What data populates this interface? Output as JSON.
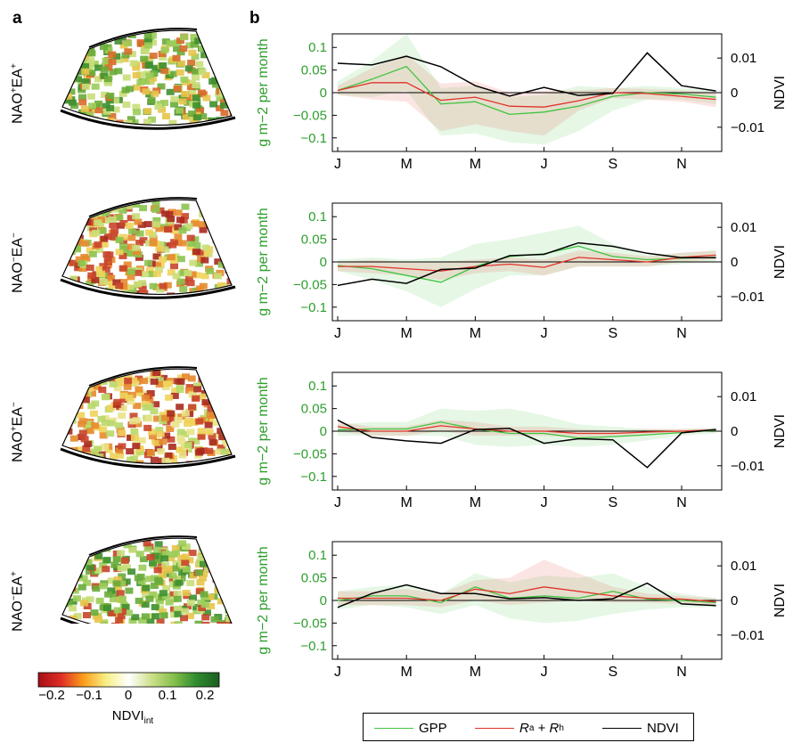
{
  "panel_labels": {
    "a": "a",
    "b": "b"
  },
  "rows": [
    {
      "base": "NAO",
      "sup1": "+",
      "mid": "EA",
      "sup2": "+"
    },
    {
      "base": "NAO",
      "sup1": "−",
      "mid": "EA",
      "sup2": "−"
    },
    {
      "base": "NAO",
      "sup1": "+",
      "mid": "EA",
      "sup2": "−"
    },
    {
      "base": "NAO",
      "sup1": "−",
      "mid": "EA",
      "sup2": "+"
    }
  ],
  "colorbar": {
    "ticks": [
      "−0.2",
      "−0.1",
      "0",
      "0.1",
      "0.2"
    ],
    "label": "NDVI",
    "label_sub": "int",
    "range": [
      -0.27,
      0.27
    ],
    "colors": [
      "#a50f15",
      "#de2d26",
      "#fc9e1c",
      "#f7f085",
      "#ffffff",
      "#cde08a",
      "#84c04a",
      "#2e8b2e",
      "#1b5e20"
    ]
  },
  "legend": {
    "gpp": "GPP",
    "r_a": "R",
    "r_a_sub": "a",
    "plus": " + ",
    "r_h": "R",
    "r_h_sub": "h",
    "ndvi": "NDVI"
  },
  "colors": {
    "gpp": "#3fc43f",
    "resp": "#e0342a",
    "ndvi": "#000000",
    "axis_left": "#2e9e2e"
  },
  "chart_data": [
    {
      "type": "line",
      "row": "NAO+EA+",
      "x_ticks": [
        "J",
        "M",
        "M",
        "J",
        "S",
        "N"
      ],
      "months": [
        1,
        2,
        3,
        4,
        5,
        6,
        7,
        8,
        9,
        10,
        11,
        12
      ],
      "ylabel": "g m−2 per month",
      "ylabel_right": "NDVI",
      "ylim": [
        -0.13,
        0.13
      ],
      "yticks": [
        "0.1",
        "0.05",
        "0",
        "−0.05",
        "−0.1"
      ],
      "ylim_right": [
        -0.017,
        0.017
      ],
      "yticks_right": [
        "0.01",
        "0",
        "−0.01"
      ],
      "series": [
        {
          "name": "GPP",
          "values": [
            0.005,
            0.03,
            0.058,
            -0.025,
            -0.02,
            -0.048,
            -0.043,
            -0.03,
            -0.008,
            0.0,
            -0.003,
            -0.01
          ],
          "lower": [
            -0.005,
            -0.01,
            0.005,
            -0.095,
            -0.09,
            -0.11,
            -0.115,
            -0.085,
            -0.04,
            -0.015,
            -0.015,
            -0.025
          ],
          "upper": [
            0.025,
            0.07,
            0.13,
            0.01,
            0.015,
            -0.01,
            -0.005,
            0.015,
            0.01,
            0.015,
            0.01,
            0.005
          ]
        },
        {
          "name": "Ra + Rh",
          "values": [
            0.005,
            0.022,
            0.022,
            -0.017,
            -0.01,
            -0.03,
            -0.032,
            -0.018,
            0.0,
            -0.002,
            -0.008,
            -0.015
          ],
          "lower": [
            -0.005,
            -0.015,
            -0.02,
            -0.085,
            -0.07,
            -0.085,
            -0.095,
            -0.04,
            -0.012,
            -0.015,
            -0.02,
            -0.032
          ],
          "upper": [
            0.015,
            0.055,
            0.085,
            0.02,
            0.025,
            0.0,
            0.005,
            0.005,
            0.01,
            0.008,
            0.005,
            0.0
          ]
        },
        {
          "name": "NDVI",
          "values": [
            0.0085,
            0.008,
            0.0105,
            0.0075,
            0.002,
            -0.001,
            0.0015,
            -0.0008,
            -0.0002,
            0.0115,
            0.002,
            0.0005
          ]
        }
      ]
    },
    {
      "type": "line",
      "row": "NAO−EA−",
      "x_ticks": [
        "J",
        "M",
        "M",
        "J",
        "S",
        "N"
      ],
      "months": [
        1,
        2,
        3,
        4,
        5,
        6,
        7,
        8,
        9,
        10,
        11,
        12
      ],
      "ylabel": "g m−2 per month",
      "ylabel_right": "NDVI",
      "ylim": [
        -0.13,
        0.13
      ],
      "yticks": [
        "0.1",
        "0.05",
        "0",
        "−0.05",
        "−0.1"
      ],
      "ylim_right": [
        -0.017,
        0.017
      ],
      "yticks_right": [
        "0.01",
        "0",
        "−0.01"
      ],
      "series": [
        {
          "name": "GPP",
          "values": [
            -0.008,
            -0.015,
            -0.03,
            -0.045,
            -0.01,
            0.012,
            0.018,
            0.035,
            0.012,
            0.005,
            0.008,
            0.01
          ],
          "lower": [
            -0.02,
            -0.04,
            -0.065,
            -0.1,
            -0.06,
            -0.03,
            -0.03,
            -0.01,
            -0.01,
            -0.01,
            -0.005,
            0.0
          ],
          "upper": [
            0.005,
            0.01,
            0.005,
            0.01,
            0.04,
            0.05,
            0.065,
            0.08,
            0.04,
            0.015,
            0.02,
            0.025
          ]
        },
        {
          "name": "Ra + Rh",
          "values": [
            -0.01,
            -0.01,
            -0.015,
            -0.02,
            -0.01,
            -0.005,
            -0.012,
            0.01,
            0.005,
            0.0,
            0.01,
            0.015
          ],
          "lower": [
            -0.02,
            -0.025,
            -0.03,
            -0.04,
            -0.025,
            -0.02,
            -0.03,
            -0.01,
            -0.01,
            -0.01,
            0.0,
            0.005
          ],
          "upper": [
            0.0,
            0.005,
            0.0,
            0.0,
            0.005,
            0.01,
            0.005,
            0.025,
            0.02,
            0.012,
            0.02,
            0.025
          ]
        },
        {
          "name": "NDVI",
          "values": [
            -0.0068,
            -0.005,
            -0.0062,
            -0.0022,
            -0.0018,
            0.0018,
            0.0022,
            0.0055,
            0.0045,
            0.0025,
            0.0012,
            0.0012
          ]
        }
      ]
    },
    {
      "type": "line",
      "row": "NAO+EA−",
      "x_ticks": [
        "J",
        "M",
        "M",
        "J",
        "S",
        "N"
      ],
      "months": [
        1,
        2,
        3,
        4,
        5,
        6,
        7,
        8,
        9,
        10,
        11,
        12
      ],
      "ylabel": "g m−2 per month",
      "ylabel_right": "NDVI",
      "ylim": [
        -0.13,
        0.13
      ],
      "yticks": [
        "0.1",
        "0.05",
        "0",
        "−0.05",
        "−0.1"
      ],
      "ylim_right": [
        -0.017,
        0.017
      ],
      "yticks_right": [
        "0.01",
        "0",
        "−0.01"
      ],
      "series": [
        {
          "name": "GPP",
          "values": [
            0.003,
            0.005,
            0.005,
            0.02,
            0.005,
            -0.005,
            -0.005,
            -0.015,
            -0.012,
            -0.008,
            -0.003,
            0.002
          ],
          "lower": [
            -0.01,
            -0.01,
            -0.01,
            -0.01,
            -0.03,
            -0.035,
            -0.03,
            -0.035,
            -0.03,
            -0.02,
            -0.01,
            -0.005
          ],
          "upper": [
            0.015,
            0.02,
            0.02,
            0.05,
            0.045,
            0.05,
            0.035,
            0.015,
            0.01,
            0.005,
            0.005,
            0.008
          ]
        },
        {
          "name": "Ra + Rh",
          "values": [
            0.01,
            0.0,
            0.0,
            0.012,
            0.005,
            0.0,
            0.0,
            -0.005,
            -0.005,
            -0.002,
            0.0,
            0.003
          ],
          "lower": [
            0.0,
            -0.01,
            -0.01,
            0.0,
            -0.01,
            -0.01,
            -0.01,
            -0.015,
            -0.012,
            -0.008,
            -0.005,
            0.0
          ],
          "upper": [
            0.02,
            0.01,
            0.01,
            0.025,
            0.02,
            0.01,
            0.01,
            0.005,
            0.002,
            0.005,
            0.005,
            0.006
          ]
        },
        {
          "name": "NDVI",
          "values": [
            0.0032,
            -0.0018,
            -0.0028,
            -0.0035,
            0.0005,
            0.0008,
            -0.0035,
            -0.0022,
            -0.0025,
            -0.0105,
            -0.0005,
            0.0005
          ]
        }
      ]
    },
    {
      "type": "line",
      "row": "NAO−EA+",
      "x_ticks": [
        "J",
        "M",
        "M",
        "J",
        "S",
        "N"
      ],
      "months": [
        1,
        2,
        3,
        4,
        5,
        6,
        7,
        8,
        9,
        10,
        11,
        12
      ],
      "ylabel": "g m−2 per month",
      "ylabel_right": "NDVI",
      "ylim": [
        -0.13,
        0.13
      ],
      "yticks": [
        "0.1",
        "0.05",
        "0",
        "−0.05",
        "−0.1"
      ],
      "ylim_right": [
        -0.017,
        0.017
      ],
      "yticks_right": [
        "0.01",
        "0",
        "−0.01"
      ],
      "series": [
        {
          "name": "GPP",
          "values": [
            0.0,
            0.01,
            0.01,
            -0.005,
            0.03,
            0.005,
            0.01,
            0.005,
            0.02,
            0.003,
            0.0,
            -0.005
          ],
          "lower": [
            -0.02,
            -0.01,
            -0.015,
            -0.03,
            -0.01,
            -0.04,
            -0.05,
            -0.045,
            -0.03,
            -0.02,
            -0.015,
            -0.015
          ],
          "upper": [
            0.02,
            0.03,
            0.035,
            0.015,
            0.06,
            0.04,
            0.055,
            0.05,
            0.06,
            0.03,
            0.015,
            0.005
          ]
        },
        {
          "name": "Ra + Rh",
          "values": [
            0.005,
            0.005,
            0.005,
            0.0,
            0.025,
            0.015,
            0.03,
            0.02,
            0.01,
            0.005,
            0.003,
            -0.003
          ],
          "lower": [
            -0.01,
            -0.01,
            -0.01,
            -0.015,
            0.0,
            -0.01,
            -0.005,
            0.0,
            -0.005,
            -0.005,
            -0.008,
            -0.01
          ],
          "upper": [
            0.02,
            0.02,
            0.025,
            0.015,
            0.045,
            0.05,
            0.09,
            0.06,
            0.03,
            0.015,
            0.01,
            0.005
          ]
        },
        {
          "name": "NDVI",
          "values": [
            -0.002,
            0.002,
            0.0045,
            0.002,
            0.002,
            0.0005,
            0.0008,
            0.0,
            0.0005,
            0.005,
            -0.001,
            -0.0015
          ]
        }
      ]
    }
  ]
}
